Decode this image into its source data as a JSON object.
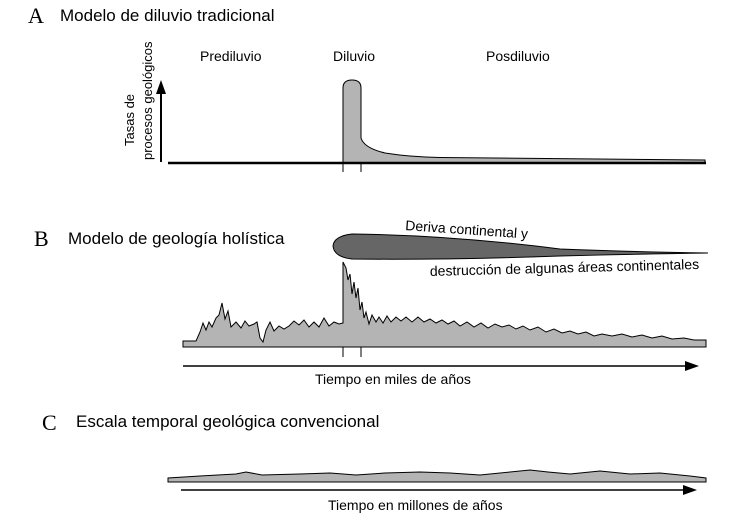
{
  "panel_a": {
    "letter": "A",
    "title": "Modelo de diluvio tradicional",
    "y_axis_label_line1": "Tasas de",
    "y_axis_label_line2": "procesos geológicos",
    "phase_prediluvio": "Prediluvio",
    "phase_diluvio": "Diluvio",
    "phase_posdiluvio": "Posdiluvio"
  },
  "panel_b": {
    "letter": "B",
    "title": "Modelo de geología holística",
    "annotation_line1": "Deriva continental y",
    "annotation_line2": "destrucción de algunas áreas continentales",
    "time_axis_label": "Tiempo en miles de años"
  },
  "panel_c": {
    "letter": "C",
    "title": "Escala temporal geológica convencional",
    "time_axis_label": "Tiempo en millones de años"
  },
  "colors": {
    "fill_gray": "#b4b4b4",
    "dark_gray": "#666666",
    "line": "#000000"
  }
}
